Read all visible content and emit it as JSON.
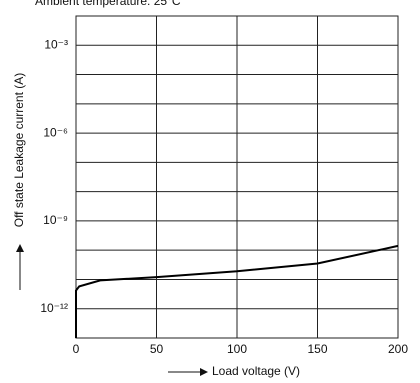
{
  "chart_data": {
    "type": "line",
    "title": "Ambient temperature: 25°C",
    "x_label": "Load voltage (V)",
    "y_label": "Off state Leakage current (A)",
    "log_y": true,
    "grid": true,
    "xlim": [
      0,
      200
    ],
    "xticks": [
      0,
      50,
      100,
      150,
      200
    ],
    "ylim": [
      1e-13,
      0.01
    ],
    "yticks": [
      {
        "value": 0.001,
        "label": "10⁻³"
      },
      {
        "value": 1e-06,
        "label": "10⁻⁶"
      },
      {
        "value": 1e-09,
        "label": "10⁻⁹"
      },
      {
        "value": 1e-12,
        "label": "10⁻¹²"
      }
    ],
    "yminor": [
      0.0001,
      1e-05,
      1e-07,
      1e-08,
      1e-10,
      1e-11
    ],
    "x": [
      0,
      0,
      2,
      15,
      50,
      100,
      150,
      200
    ],
    "series": [
      {
        "color": "#000000",
        "values": [
          1e-13,
          4.2e-12,
          5.8e-12,
          9.3e-12,
          1.2e-11,
          1.9e-11,
          3.5e-11,
          1.4e-10
        ]
      }
    ]
  }
}
